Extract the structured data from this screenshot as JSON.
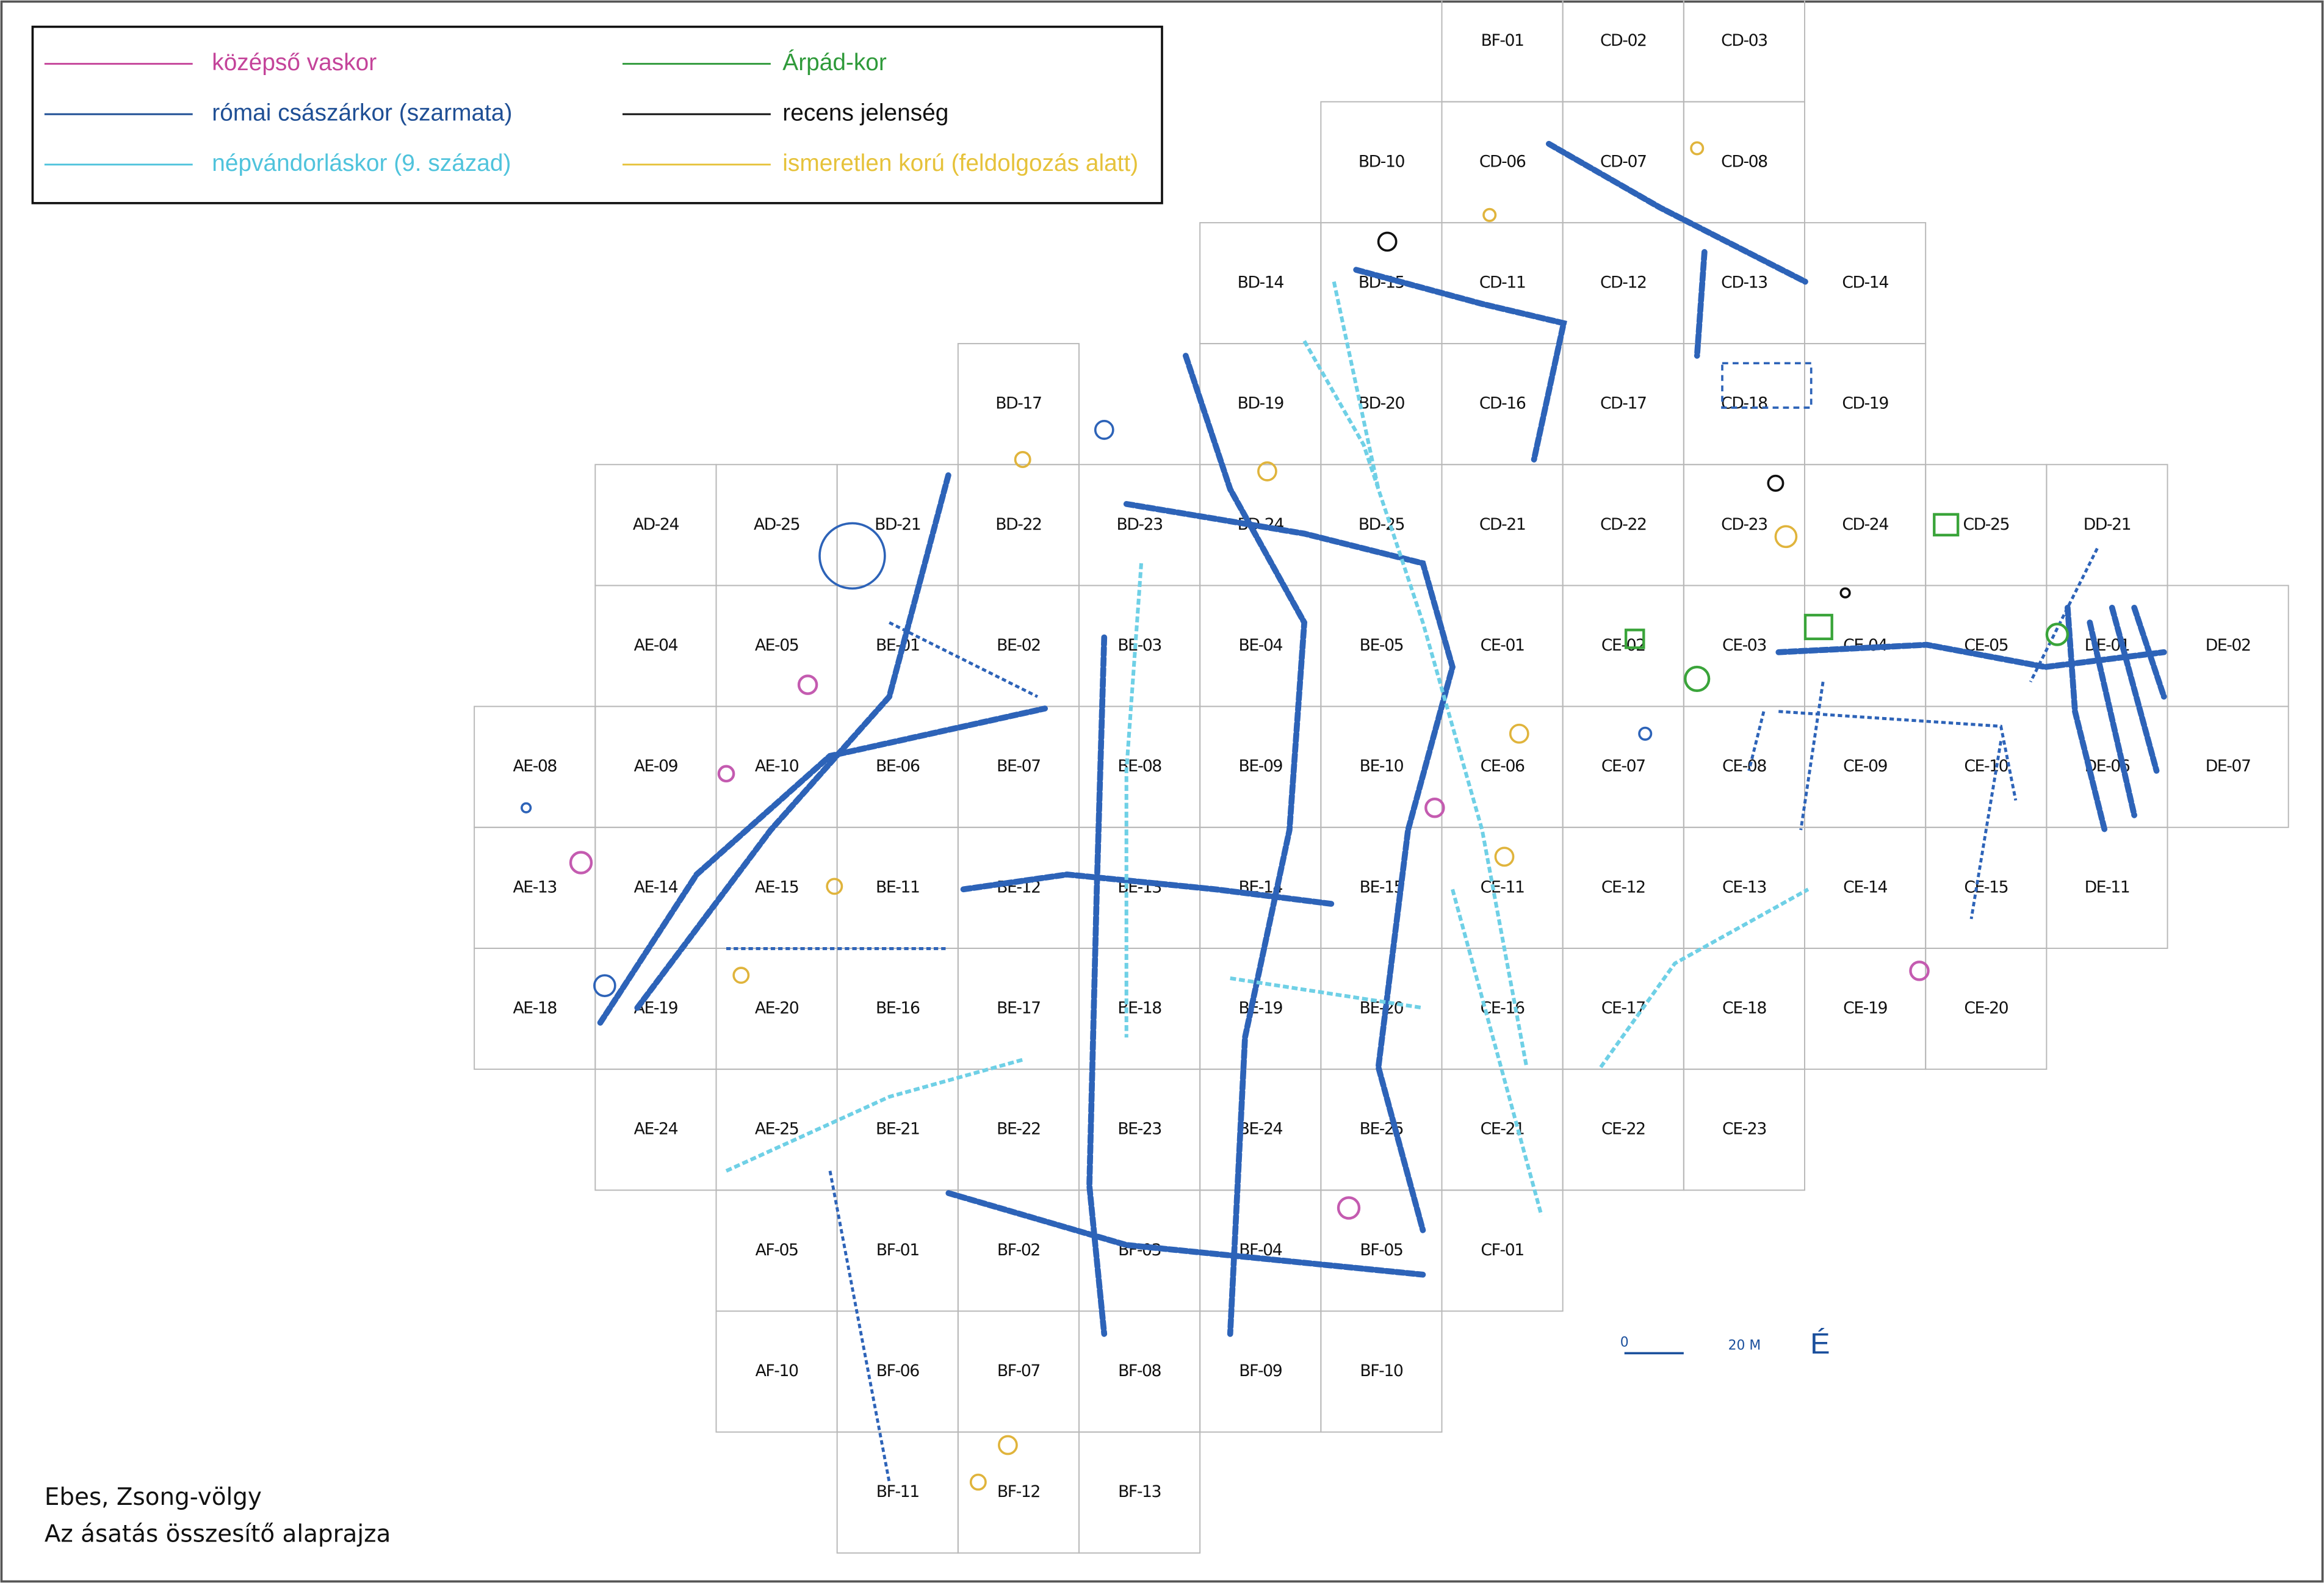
{
  "legend": [
    {
      "label": "középső vaskor",
      "color": "#c4449a"
    },
    {
      "label": "római császárkor (szarmata)",
      "color": "#1f4f95"
    },
    {
      "label": "népvándorláskor (9. század)",
      "color": "#4fc3dc"
    },
    {
      "label": "Árpád-kor",
      "color": "#2f9a3a"
    },
    {
      "label": "recens jelenség",
      "color": "#111111"
    },
    {
      "label": "ismeretlen korú (feldolgozás alatt)",
      "color": "#e6c23a"
    }
  ],
  "grid": {
    "rows": [
      [
        null,
        null,
        null,
        null,
        null,
        null,
        null,
        null,
        "BF-01",
        "CD-02",
        "CD-03",
        null,
        null,
        null,
        null
      ],
      [
        null,
        null,
        null,
        null,
        null,
        null,
        null,
        "BD-10",
        "CD-06",
        "CD-07",
        "CD-08",
        null,
        null,
        null,
        null
      ],
      [
        null,
        null,
        null,
        null,
        null,
        null,
        "BD-14",
        "BD-15",
        "CD-11",
        "CD-12",
        "CD-13",
        "CD-14",
        null,
        null,
        null
      ],
      [
        null,
        null,
        null,
        null,
        "BD-17",
        null,
        "BD-19",
        "BD-20",
        "CD-16",
        "CD-17",
        "CD-18",
        "CD-19",
        null,
        null,
        null
      ],
      [
        null,
        "AD-24",
        "AD-25",
        "BD-21",
        "BD-22",
        "BD-23",
        "BD-24",
        "BD-25",
        "CD-21",
        "CD-22",
        "CD-23",
        "CD-24",
        "CD-25",
        "DD-21",
        null
      ],
      [
        null,
        "AE-04",
        "AE-05",
        "BE-01",
        "BE-02",
        "BE-03",
        "BE-04",
        "BE-05",
        "CE-01",
        "CE-02",
        "CE-03",
        "CE-04",
        "CE-05",
        "DE-01",
        "DE-02"
      ],
      [
        "AE-08",
        "AE-09",
        "AE-10",
        "BE-06",
        "BE-07",
        "BE-08",
        "BE-09",
        "BE-10",
        "CE-06",
        "CE-07",
        "CE-08",
        "CE-09",
        "CE-10",
        "DE-06",
        "DE-07"
      ],
      [
        "AE-13",
        "AE-14",
        "AE-15",
        "BE-11",
        "BE-12",
        "BE-13",
        "BE-14",
        "BE-15",
        "CE-11",
        "CE-12",
        "CE-13",
        "CE-14",
        "CE-15",
        "DE-11",
        null
      ],
      [
        "AE-18",
        "AE-19",
        "AE-20",
        "BE-16",
        "BE-17",
        "BE-18",
        "BE-19",
        "BE-20",
        "CE-16",
        "CE-17",
        "CE-18",
        "CE-19",
        "CE-20",
        null,
        null
      ],
      [
        null,
        "AE-24",
        "AE-25",
        "BE-21",
        "BE-22",
        "BE-23",
        "BE-24",
        "BE-25",
        "CE-21",
        "CE-22",
        "CE-23",
        null,
        null,
        null,
        null
      ],
      [
        null,
        null,
        "AF-05",
        "BF-01",
        "BF-02",
        "BF-03",
        "BF-04",
        "BF-05",
        "CF-01",
        null,
        null,
        null,
        null,
        null,
        null
      ],
      [
        null,
        null,
        "AF-10",
        "BF-06",
        "BF-07",
        "BF-08",
        "BF-09",
        "BF-10",
        null,
        null,
        null,
        null,
        null,
        null,
        null
      ],
      [
        null,
        null,
        null,
        "BF-11",
        "BF-12",
        "BF-13",
        null,
        null,
        null,
        null,
        null,
        null,
        null,
        null,
        null
      ]
    ]
  },
  "scale_bar": {
    "start": "0",
    "end": "20 M"
  },
  "north": "É",
  "caption": {
    "line1": "Ebes, Zsong-völgy",
    "line2": "Az ásatás összesítő alaprajza"
  }
}
